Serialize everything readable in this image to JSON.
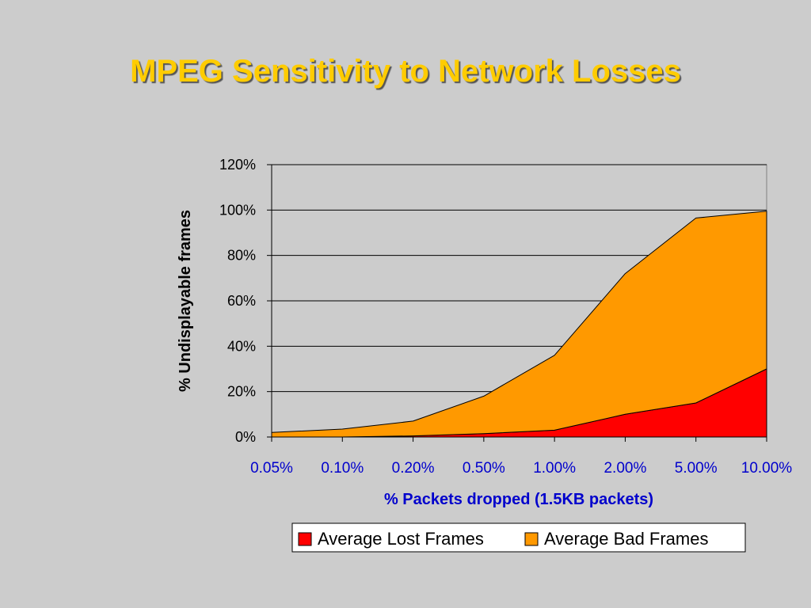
{
  "slide": {
    "title": "MPEG Sensitivity to Network Losses",
    "title_color": "#ffcc00",
    "background": "#cccccc"
  },
  "chart_data": {
    "type": "area",
    "stacked": true,
    "categories": [
      "0.05%",
      "0.10%",
      "0.20%",
      "0.50%",
      "1.00%",
      "2.00%",
      "5.00%",
      "10.00%"
    ],
    "series": [
      {
        "name": "Average Lost Frames",
        "color": "#ff0000",
        "values": [
          0,
          0,
          0.5,
          1.5,
          3,
          10,
          15,
          30
        ]
      },
      {
        "name": "Average Bad Frames",
        "color": "#ff9900",
        "values": [
          2,
          3.5,
          6.5,
          16.5,
          33,
          62,
          81.5,
          69.5
        ]
      }
    ],
    "xlabel": "% Packets dropped (1.5KB packets)",
    "ylabel": "% Undisplayable frames",
    "ylim": [
      0,
      120
    ],
    "yticks": [
      0,
      20,
      40,
      60,
      80,
      100,
      120
    ],
    "ytick_labels": [
      "0%",
      "20%",
      "40%",
      "60%",
      "80%",
      "100%",
      "120%"
    ],
    "ytick_suffix": "%",
    "grid": true,
    "xaxis_color": "#0000cc",
    "legend_position": "bottom"
  }
}
